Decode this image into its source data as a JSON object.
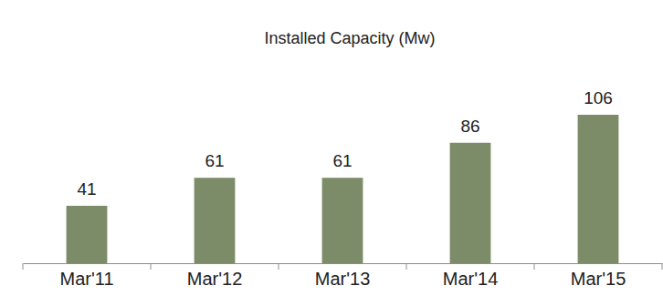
{
  "chart_data": {
    "type": "bar",
    "title": "Installed Capacity (Mw)",
    "categories": [
      "Mar'11",
      "Mar'12",
      "Mar'13",
      "Mar'14",
      "Mar'15"
    ],
    "values": [
      41,
      61,
      61,
      86,
      106
    ],
    "color": "#7d8c68",
    "data_labels": true,
    "tick_labels": "x"
  }
}
